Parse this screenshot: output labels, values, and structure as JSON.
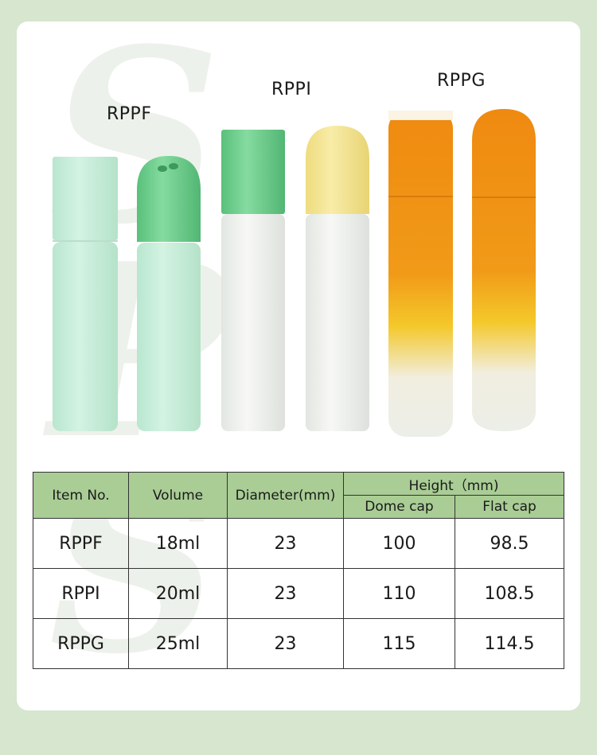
{
  "colors": {
    "frame": "#d6e6cf",
    "table_header": "#a9cd95",
    "mint": "#c4ecd9",
    "green_cap": "#6fcf8e",
    "yellow_cap": "#f3e497",
    "orange": "#ee8a10"
  },
  "watermark": "SPS",
  "products": [
    {
      "name": "RPPF"
    },
    {
      "name": "RPPI"
    },
    {
      "name": "RPPG"
    }
  ],
  "table": {
    "headers": {
      "item_no": "Item No.",
      "volume": "Volume",
      "diameter": "Diameter(mm)",
      "height": "Height（mm)",
      "dome_cap": "Dome cap",
      "flat_cap": "Flat cap"
    },
    "rows": [
      {
        "item": "RPPF",
        "volume": "18ml",
        "diameter": "23",
        "dome": "100",
        "flat": "98.5"
      },
      {
        "item": "RPPI",
        "volume": "20ml",
        "diameter": "23",
        "dome": "110",
        "flat": "108.5"
      },
      {
        "item": "RPPG",
        "volume": "25ml",
        "diameter": "23",
        "dome": "115",
        "flat": "114.5"
      }
    ]
  }
}
